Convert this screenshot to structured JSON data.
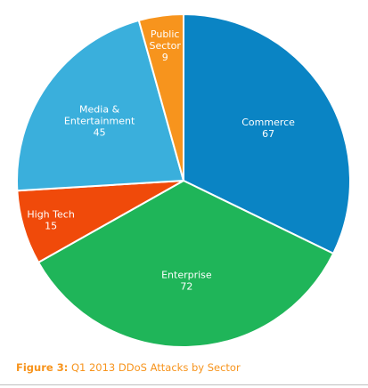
{
  "chart_data": {
    "type": "pie",
    "slices": [
      {
        "label": "Commerce",
        "value": 67,
        "color": "#0a84c4"
      },
      {
        "label": "Enterprise",
        "value": 72,
        "color": "#1fb559"
      },
      {
        "label": "High Tech",
        "value": 15,
        "color": "#f04a0a"
      },
      {
        "label": "Media & Entertainment",
        "value": 45,
        "color": "#3aafdc"
      },
      {
        "label": "Public Sector",
        "value": 9,
        "color": "#f7941d"
      }
    ]
  },
  "caption": {
    "prefix": "Figure 3:",
    "text": " Q1 2013 DDoS Attacks by Sector"
  }
}
